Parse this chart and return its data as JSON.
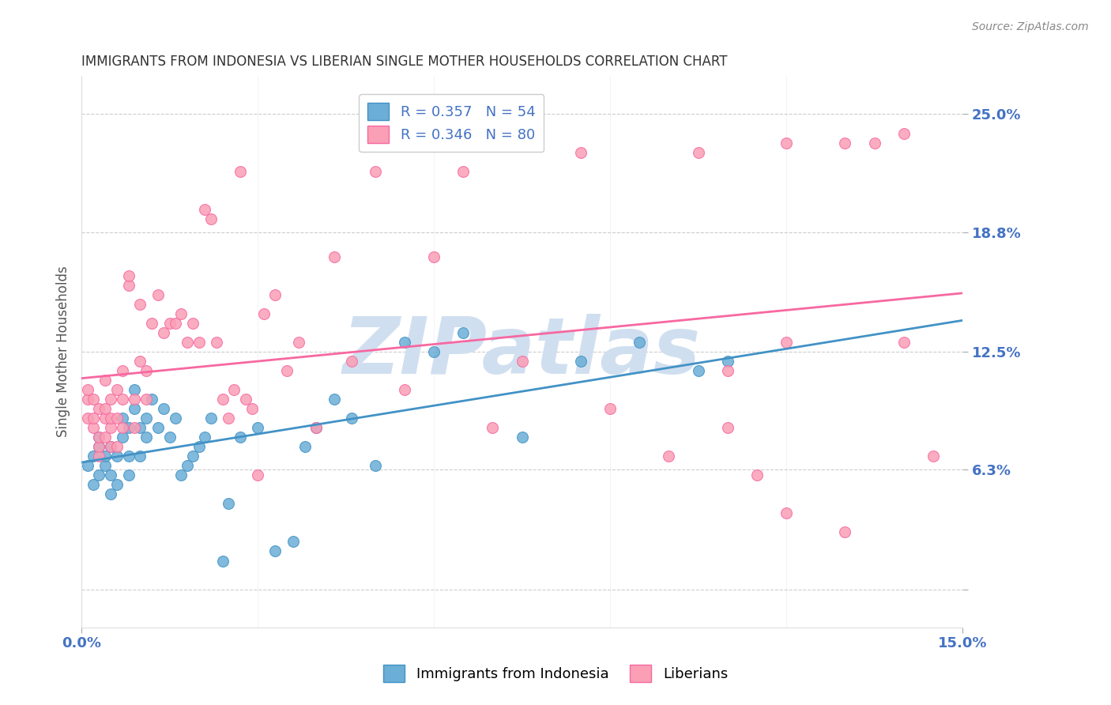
{
  "title": "IMMIGRANTS FROM INDONESIA VS LIBERIAN SINGLE MOTHER HOUSEHOLDS CORRELATION CHART",
  "source": "Source: ZipAtlas.com",
  "xlabel_ticks": [
    "0.0%",
    "15.0%"
  ],
  "ylabel_ticks": [
    0.0,
    0.063,
    0.125,
    0.188,
    0.25
  ],
  "ylabel_tick_labels": [
    "",
    "6.3%",
    "12.5%",
    "18.8%",
    "25.0%"
  ],
  "xmin": 0.0,
  "xmax": 0.15,
  "ymin": -0.02,
  "ymax": 0.27,
  "legend_label1": "Immigrants from Indonesia",
  "legend_label2": "Liberians",
  "R1": 0.357,
  "N1": 54,
  "R2": 0.346,
  "N2": 80,
  "blue_color": "#6baed6",
  "pink_color": "#fa9fb5",
  "blue_line_color": "#4292c6",
  "pink_line_color": "#f768a1",
  "title_color": "#333333",
  "axis_label_color": "#4472c4",
  "watermark_color": "#d0dff0",
  "watermark_text": "ZIPatlas",
  "ylabel": "Single Mother Households",
  "blue_x": [
    0.001,
    0.002,
    0.002,
    0.003,
    0.003,
    0.003,
    0.004,
    0.004,
    0.005,
    0.005,
    0.005,
    0.006,
    0.006,
    0.007,
    0.007,
    0.008,
    0.008,
    0.008,
    0.009,
    0.009,
    0.01,
    0.01,
    0.011,
    0.011,
    0.012,
    0.013,
    0.014,
    0.015,
    0.016,
    0.017,
    0.018,
    0.019,
    0.02,
    0.021,
    0.022,
    0.024,
    0.025,
    0.027,
    0.03,
    0.033,
    0.036,
    0.038,
    0.04,
    0.043,
    0.046,
    0.05,
    0.055,
    0.06,
    0.065,
    0.075,
    0.085,
    0.095,
    0.105,
    0.11
  ],
  "blue_y": [
    0.065,
    0.055,
    0.07,
    0.06,
    0.075,
    0.08,
    0.065,
    0.07,
    0.05,
    0.06,
    0.075,
    0.055,
    0.07,
    0.08,
    0.09,
    0.06,
    0.07,
    0.085,
    0.095,
    0.105,
    0.07,
    0.085,
    0.08,
    0.09,
    0.1,
    0.085,
    0.095,
    0.08,
    0.09,
    0.06,
    0.065,
    0.07,
    0.075,
    0.08,
    0.09,
    0.015,
    0.045,
    0.08,
    0.085,
    0.02,
    0.025,
    0.075,
    0.085,
    0.1,
    0.09,
    0.065,
    0.13,
    0.125,
    0.135,
    0.08,
    0.12,
    0.13,
    0.115,
    0.12
  ],
  "pink_x": [
    0.001,
    0.001,
    0.001,
    0.002,
    0.002,
    0.002,
    0.003,
    0.003,
    0.003,
    0.003,
    0.004,
    0.004,
    0.004,
    0.004,
    0.005,
    0.005,
    0.005,
    0.005,
    0.006,
    0.006,
    0.006,
    0.007,
    0.007,
    0.007,
    0.008,
    0.008,
    0.009,
    0.009,
    0.01,
    0.01,
    0.011,
    0.011,
    0.012,
    0.013,
    0.014,
    0.015,
    0.016,
    0.017,
    0.018,
    0.019,
    0.02,
    0.021,
    0.022,
    0.023,
    0.024,
    0.025,
    0.026,
    0.027,
    0.028,
    0.029,
    0.03,
    0.031,
    0.033,
    0.035,
    0.037,
    0.04,
    0.043,
    0.046,
    0.05,
    0.055,
    0.06,
    0.065,
    0.07,
    0.075,
    0.085,
    0.09,
    0.1,
    0.105,
    0.11,
    0.115,
    0.12,
    0.12,
    0.13,
    0.135,
    0.14,
    0.145,
    0.11,
    0.12,
    0.13,
    0.14
  ],
  "pink_y": [
    0.09,
    0.1,
    0.105,
    0.085,
    0.09,
    0.1,
    0.07,
    0.075,
    0.08,
    0.095,
    0.08,
    0.09,
    0.095,
    0.11,
    0.075,
    0.085,
    0.09,
    0.1,
    0.075,
    0.09,
    0.105,
    0.085,
    0.1,
    0.115,
    0.16,
    0.165,
    0.085,
    0.1,
    0.12,
    0.15,
    0.1,
    0.115,
    0.14,
    0.155,
    0.135,
    0.14,
    0.14,
    0.145,
    0.13,
    0.14,
    0.13,
    0.2,
    0.195,
    0.13,
    0.1,
    0.09,
    0.105,
    0.22,
    0.1,
    0.095,
    0.06,
    0.145,
    0.155,
    0.115,
    0.13,
    0.085,
    0.175,
    0.12,
    0.22,
    0.105,
    0.175,
    0.22,
    0.085,
    0.12,
    0.23,
    0.095,
    0.07,
    0.23,
    0.115,
    0.06,
    0.04,
    0.13,
    0.235,
    0.235,
    0.13,
    0.07,
    0.085,
    0.235,
    0.03,
    0.24
  ]
}
